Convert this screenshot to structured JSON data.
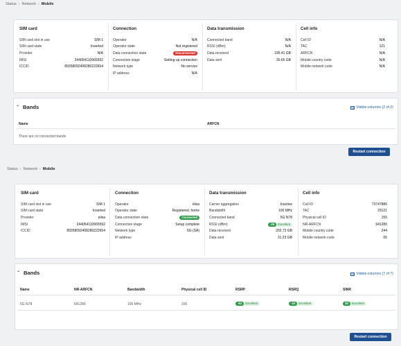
{
  "top": {
    "breadcrumb": [
      "Status",
      "Network",
      "Mobile"
    ],
    "sim_card": {
      "title": "SIM card",
      "rows": [
        {
          "k": "SIM card slot in use",
          "v": "SIM 1"
        },
        {
          "k": "SIM card state",
          "v": "Inserted"
        },
        {
          "k": "Provider",
          "v": "N/A"
        },
        {
          "k": "IMSI",
          "v": "244054110965592"
        },
        {
          "k": "ICCID",
          "v": "89358092408280222654"
        }
      ]
    },
    "connection": {
      "title": "Connection",
      "rows": [
        {
          "k": "Operator",
          "v": "N/A"
        },
        {
          "k": "Operator state",
          "v": "Not registered"
        },
        {
          "k": "Data connection state",
          "v": "Disconnected"
        },
        {
          "k": "Connection stage",
          "v": "Setting up connection"
        },
        {
          "k": "Network type",
          "v": "No service"
        },
        {
          "k": "IP address",
          "v": "N/A"
        }
      ]
    },
    "data_transmission": {
      "title": "Data transmission",
      "rows": [
        {
          "k": "Connected band",
          "v": "N/A"
        },
        {
          "k": "RSSI (dBm)",
          "v": "N/A"
        },
        {
          "k": "Data received",
          "v": "195.41 GB"
        },
        {
          "k": "Data sent",
          "v": "30.65 GB"
        }
      ]
    },
    "cell_info": {
      "title": "Cell info",
      "rows": [
        {
          "k": "Cell ID",
          "v": "N/A"
        },
        {
          "k": "TAC",
          "v": "121"
        },
        {
          "k": "ARFCN",
          "v": "N/A"
        },
        {
          "k": "Mobile country code",
          "v": "N/A"
        },
        {
          "k": "Mobile network code",
          "v": "N/A"
        }
      ]
    },
    "bands": {
      "title": "Bands",
      "visible_columns": "Visible columns (2 of 2)",
      "columns": [
        "Name",
        "ARFCN"
      ],
      "empty_text": "There are no connected bands"
    },
    "restart_label": "Restart connection"
  },
  "bottom": {
    "breadcrumb": [
      "Status",
      "Network",
      "Mobile"
    ],
    "sim_card": {
      "title": "SIM card",
      "rows": [
        {
          "k": "SIM card slot in use",
          "v": "SIM 1"
        },
        {
          "k": "SIM card state",
          "v": "Inserted"
        },
        {
          "k": "Provider",
          "v": "elisa"
        },
        {
          "k": "IMSI",
          "v": "244054110965592"
        },
        {
          "k": "ICCID",
          "v": "89358092408280222654"
        }
      ]
    },
    "connection": {
      "title": "Connection",
      "rows": [
        {
          "k": "Operator",
          "v": "elisa"
        },
        {
          "k": "Operator state",
          "v": "Registered, home"
        },
        {
          "k": "Data connection state",
          "v": "Connected"
        },
        {
          "k": "Connection stage",
          "v": "Setup complete"
        },
        {
          "k": "Network type",
          "v": "5G (SA)"
        },
        {
          "k": "IP address",
          "v": ""
        }
      ]
    },
    "data_transmission": {
      "title": "Data transmission",
      "rows": [
        {
          "k": "Carrier aggregation",
          "v": "Inactive"
        },
        {
          "k": "Bandwidth",
          "v": "100 MHz"
        },
        {
          "k": "Connected band",
          "v": "5G N78"
        },
        {
          "k": "RSSI (dBm)",
          "v": "-39",
          "quality": "Excellent"
        },
        {
          "k": "Data received",
          "v": "202.73 GB"
        },
        {
          "k": "Data sent",
          "v": "31.23 GB"
        }
      ]
    },
    "cell_info": {
      "title": "Cell info",
      "rows": [
        {
          "k": "Cell ID",
          "v": "73747886"
        },
        {
          "k": "TAC",
          "v": "29121"
        },
        {
          "k": "Physical cell ID",
          "v": "155"
        },
        {
          "k": "NR-ARFCN",
          "v": "641280"
        },
        {
          "k": "Mobile country code",
          "v": "244"
        },
        {
          "k": "Mobile network code",
          "v": "05"
        }
      ]
    },
    "bands": {
      "title": "Bands",
      "visible_columns": "Visible columns (7 of 7)",
      "columns": [
        "Name",
        "NR-ARFCN",
        "Bandwidth",
        "Physical cell ID",
        "RSRP",
        "RSRQ",
        "SINR"
      ],
      "row": {
        "name": "5G N78",
        "nr_arfcn": "641280",
        "bandwidth": "100 MHz",
        "pci": "155",
        "rsrp": "-61",
        "rsrp_q": "Excellent",
        "rsrq": "-10",
        "rsrq_q": "Excellent",
        "sinr": "30",
        "sinr_q": "Excellent"
      }
    },
    "restart_label": "Restart connection"
  },
  "colors": {
    "accent": "#1d4f91",
    "link": "#1d5fa8",
    "danger": "#d9342b",
    "success": "#2d9a4a"
  }
}
